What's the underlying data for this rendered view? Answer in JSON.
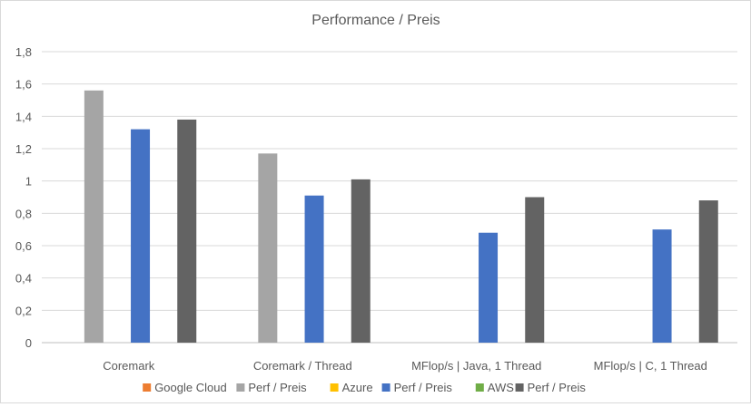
{
  "chart_data": {
    "type": "bar",
    "title": "Performance / Preis",
    "categories": [
      "Coremark",
      "Coremark / Thread",
      "MFlop/s | Java, 1 Thread",
      "MFlop/s | C, 1 Thread"
    ],
    "series": [
      {
        "name": "Google Cloud",
        "color": "#ED7D31",
        "values": [
          null,
          null,
          null,
          null
        ]
      },
      {
        "name": "Perf / Preis",
        "color": "#A5A5A5",
        "values": [
          1.56,
          1.17,
          null,
          null
        ]
      },
      {
        "name": "Azure",
        "color": "#FFC000",
        "values": [
          null,
          null,
          null,
          null
        ]
      },
      {
        "name": "Perf / Preis",
        "color": "#4472C4",
        "values": [
          1.32,
          0.91,
          0.68,
          0.7
        ]
      },
      {
        "name": "AWS",
        "color": "#70AD47",
        "values": [
          null,
          null,
          null,
          null
        ]
      },
      {
        "name": "Perf / Preis",
        "color": "#636363",
        "values": [
          1.38,
          1.01,
          0.9,
          0.88
        ]
      }
    ],
    "y_ticks": [
      "0",
      "0,2",
      "0,4",
      "0,6",
      "0,8",
      "1",
      "1,2",
      "1,4",
      "1,6",
      "1,8"
    ],
    "ylim": [
      0,
      1.8
    ],
    "grid": true,
    "legend_position": "bottom"
  }
}
